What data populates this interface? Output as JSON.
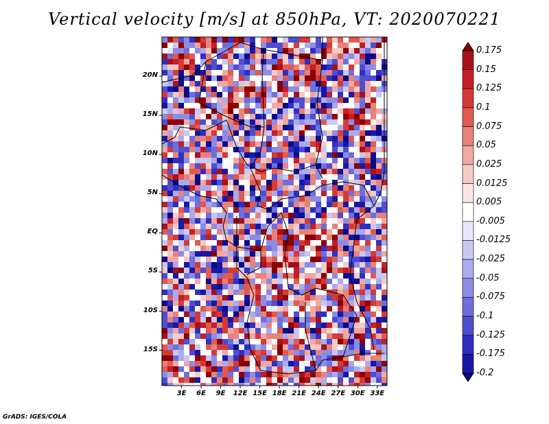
{
  "title": "Vertical velocity [m/s] at 850hPa, VT: 2020070221",
  "credit": "GrADS: IGES/COLA",
  "lat_labels": [
    "20N",
    "15N",
    "10N",
    "5N",
    "EQ",
    "5S",
    "10S",
    "15S"
  ],
  "lon_labels": [
    "3E",
    "6E",
    "9E",
    "12E",
    "15E",
    "18E",
    "21E",
    "24E",
    "27E",
    "30E",
    "33E"
  ],
  "colorbar": {
    "labels": [
      "0.175",
      "0.15",
      "0.125",
      "0.1",
      "0.075",
      "0.05",
      "0.025",
      "0.0125",
      "0.005",
      "-0.005",
      "-0.0125",
      "-0.025",
      "-0.05",
      "-0.075",
      "-0.1",
      "-0.125",
      "-0.175",
      "-0.2"
    ],
    "colors": [
      "#8b0000",
      "#a8101a",
      "#c41e26",
      "#d63a35",
      "#e05a50",
      "#e8827a",
      "#f0a8a2",
      "#f6cac6",
      "#fbe8e6",
      "#ffffff",
      "#e6e6fb",
      "#c8c8f4",
      "#aaaaee",
      "#8c8ce6",
      "#6e6ede",
      "#4e4ed2",
      "#3030c0",
      "#1818a8",
      "#0a0a8a"
    ]
  },
  "map": {
    "lon_range": [
      0,
      34.5
    ],
    "lat_range": [
      -19.5,
      25
    ],
    "field_color_red": "#e06060",
    "field_color_blue": "#6a6ad8",
    "background_color": "#ffffff"
  }
}
